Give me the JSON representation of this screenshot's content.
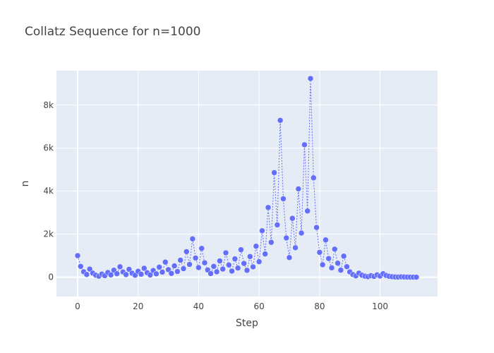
{
  "chart_data": {
    "type": "scatter",
    "mode": "lines+markers",
    "title": "Collatz Sequence for n=1000",
    "xlabel": "Step",
    "ylabel": "n",
    "xlim": [
      -7,
      119
    ],
    "ylim": [
      -900,
      9600
    ],
    "xticks": [
      0,
      20,
      40,
      60,
      80,
      100
    ],
    "yticks": [
      0,
      2000,
      4000,
      6000,
      8000
    ],
    "ytick_labels": [
      "0",
      "2k",
      "4k",
      "6k",
      "8k"
    ],
    "grid": true,
    "line_style": "dotted",
    "colors": {
      "series": "#636efa",
      "plot_background": "#e5ecf6",
      "grid": "#ffffff",
      "text": "#444444"
    },
    "series": [
      {
        "x": [
          0,
          1,
          2,
          3,
          4,
          5,
          6,
          7,
          8,
          9,
          10,
          11,
          12,
          13,
          14,
          15,
          16,
          17,
          18,
          19,
          20,
          21,
          22,
          23,
          24,
          25,
          26,
          27,
          28,
          29,
          30,
          31,
          32,
          33,
          34,
          35,
          36,
          37,
          38,
          39,
          40,
          41,
          42,
          43,
          44,
          45,
          46,
          47,
          48,
          49,
          50,
          51,
          52,
          53,
          54,
          55,
          56,
          57,
          58,
          59,
          60,
          61,
          62,
          63,
          64,
          65,
          66,
          67,
          68,
          69,
          70,
          71,
          72,
          73,
          74,
          75,
          76,
          77,
          78,
          79,
          80,
          81,
          82,
          83,
          84,
          85,
          86,
          87,
          88,
          89,
          90,
          91,
          92,
          93,
          94,
          95,
          96,
          97,
          98,
          99,
          100,
          101,
          102,
          103,
          104,
          105,
          106,
          107,
          108,
          109,
          110,
          111,
          112
        ],
        "values": [
          1000,
          500,
          250,
          125,
          376,
          188,
          94,
          47,
          142,
          71,
          214,
          107,
          322,
          161,
          484,
          242,
          121,
          364,
          182,
          91,
          274,
          137,
          412,
          206,
          103,
          310,
          155,
          466,
          233,
          700,
          350,
          175,
          526,
          263,
          790,
          395,
          1186,
          593,
          1780,
          890,
          445,
          1336,
          668,
          334,
          167,
          502,
          251,
          754,
          377,
          1132,
          566,
          283,
          850,
          425,
          1276,
          638,
          319,
          958,
          479,
          1438,
          719,
          2158,
          1079,
          3238,
          1619,
          4858,
          2429,
          7288,
          3644,
          1822,
          911,
          2734,
          1367,
          4102,
          2051,
          6154,
          3077,
          9232,
          4616,
          2308,
          1154,
          577,
          1732,
          866,
          433,
          1300,
          650,
          325,
          976,
          488,
          244,
          122,
          61,
          184,
          92,
          46,
          23,
          70,
          35,
          106,
          53,
          160,
          80,
          40,
          20,
          10,
          5,
          16,
          8,
          4,
          2,
          1,
          0
        ]
      }
    ]
  }
}
